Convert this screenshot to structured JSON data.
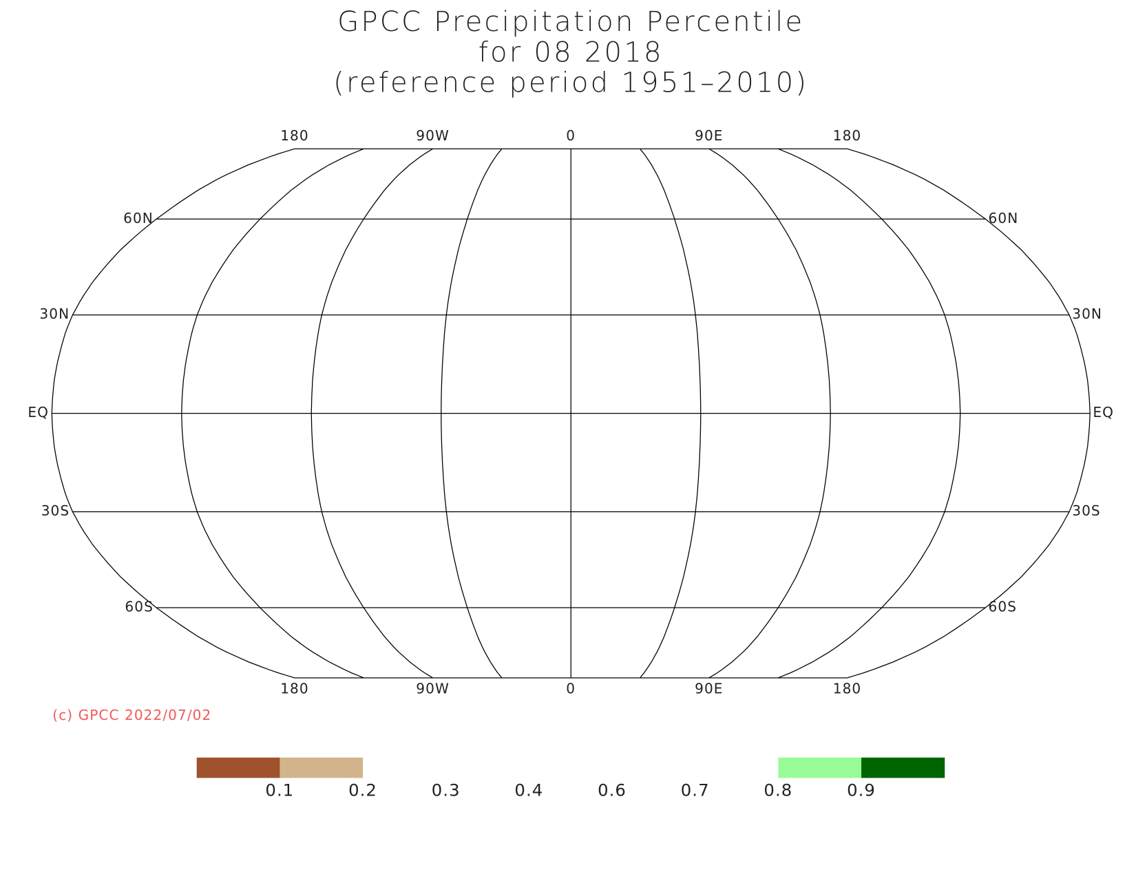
{
  "title": [
    "GPCC Precipitation Percentile",
    "for 08 2018",
    "(reference period 1951–2010)"
  ],
  "map": {
    "lon_labels": [
      {
        "value": -180,
        "label": "180"
      },
      {
        "value": -90,
        "label": "90W"
      },
      {
        "value": 0,
        "label": "0"
      },
      {
        "value": 90,
        "label": "90E"
      },
      {
        "value": 180,
        "label": "180"
      }
    ],
    "lat_labels": [
      {
        "value": 60,
        "label": "60N"
      },
      {
        "value": 30,
        "label": "30N"
      },
      {
        "value": 0,
        "label": "EQ"
      },
      {
        "value": -30,
        "label": "30S"
      },
      {
        "value": -60,
        "label": "60S"
      }
    ]
  },
  "credit": "(c) GPCC 2022/07/02",
  "legend": {
    "colors": [
      "#a0522d",
      "#d2b48c",
      "#ffffff",
      "#ffffff",
      "#ffffff",
      "#ffffff",
      "#ffffff",
      "#98fb98",
      "#006400"
    ],
    "labels": [
      "0.1",
      "0.2",
      "0.3",
      "0.4",
      "0.6",
      "0.7",
      "0.8",
      "0.9"
    ]
  }
}
